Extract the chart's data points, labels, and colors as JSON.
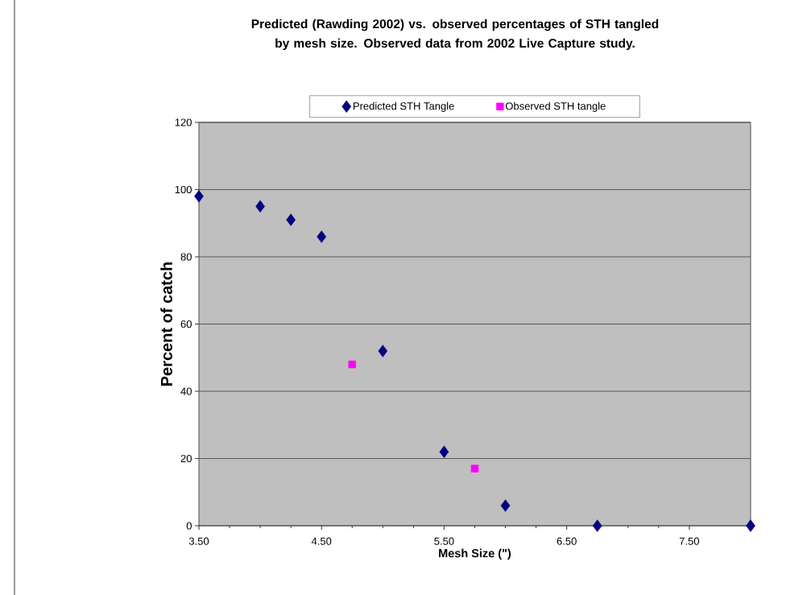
{
  "chart_data": {
    "type": "scatter",
    "title": "Predicted (Rawding 2002) vs. observed percentages of STH tangled by mesh size.  Observed data from 2002 Live Capture study.",
    "xlabel": "Mesh Size (\")",
    "ylabel": "Percent of catch",
    "series": [
      {
        "name": "Predicted STH Tangle",
        "color": "#000080",
        "marker": "diamond",
        "x": [
          3.5,
          4.0,
          4.25,
          4.5,
          5.0,
          5.5,
          6.0,
          6.75,
          8.0
        ],
        "values": [
          98,
          95,
          91,
          86,
          52,
          22,
          6,
          0,
          0
        ]
      },
      {
        "name": "Observed STH tangle",
        "color": "#ff00ff",
        "marker": "square",
        "x": [
          4.75,
          5.75
        ],
        "values": [
          48,
          17
        ]
      }
    ],
    "xlim": [
      3.5,
      8.0
    ],
    "ylim": [
      0,
      120
    ],
    "xticks": [
      {
        "value": 3.5,
        "label": "3.50"
      },
      {
        "value": 4.5,
        "label": "4.50"
      },
      {
        "value": 5.5,
        "label": "5.50"
      },
      {
        "value": 6.5,
        "label": "6.50"
      },
      {
        "value": 7.5,
        "label": "7.50"
      }
    ],
    "yticks": [
      0,
      20,
      40,
      60,
      80,
      100,
      120
    ],
    "grid": "y",
    "legend": "top"
  }
}
